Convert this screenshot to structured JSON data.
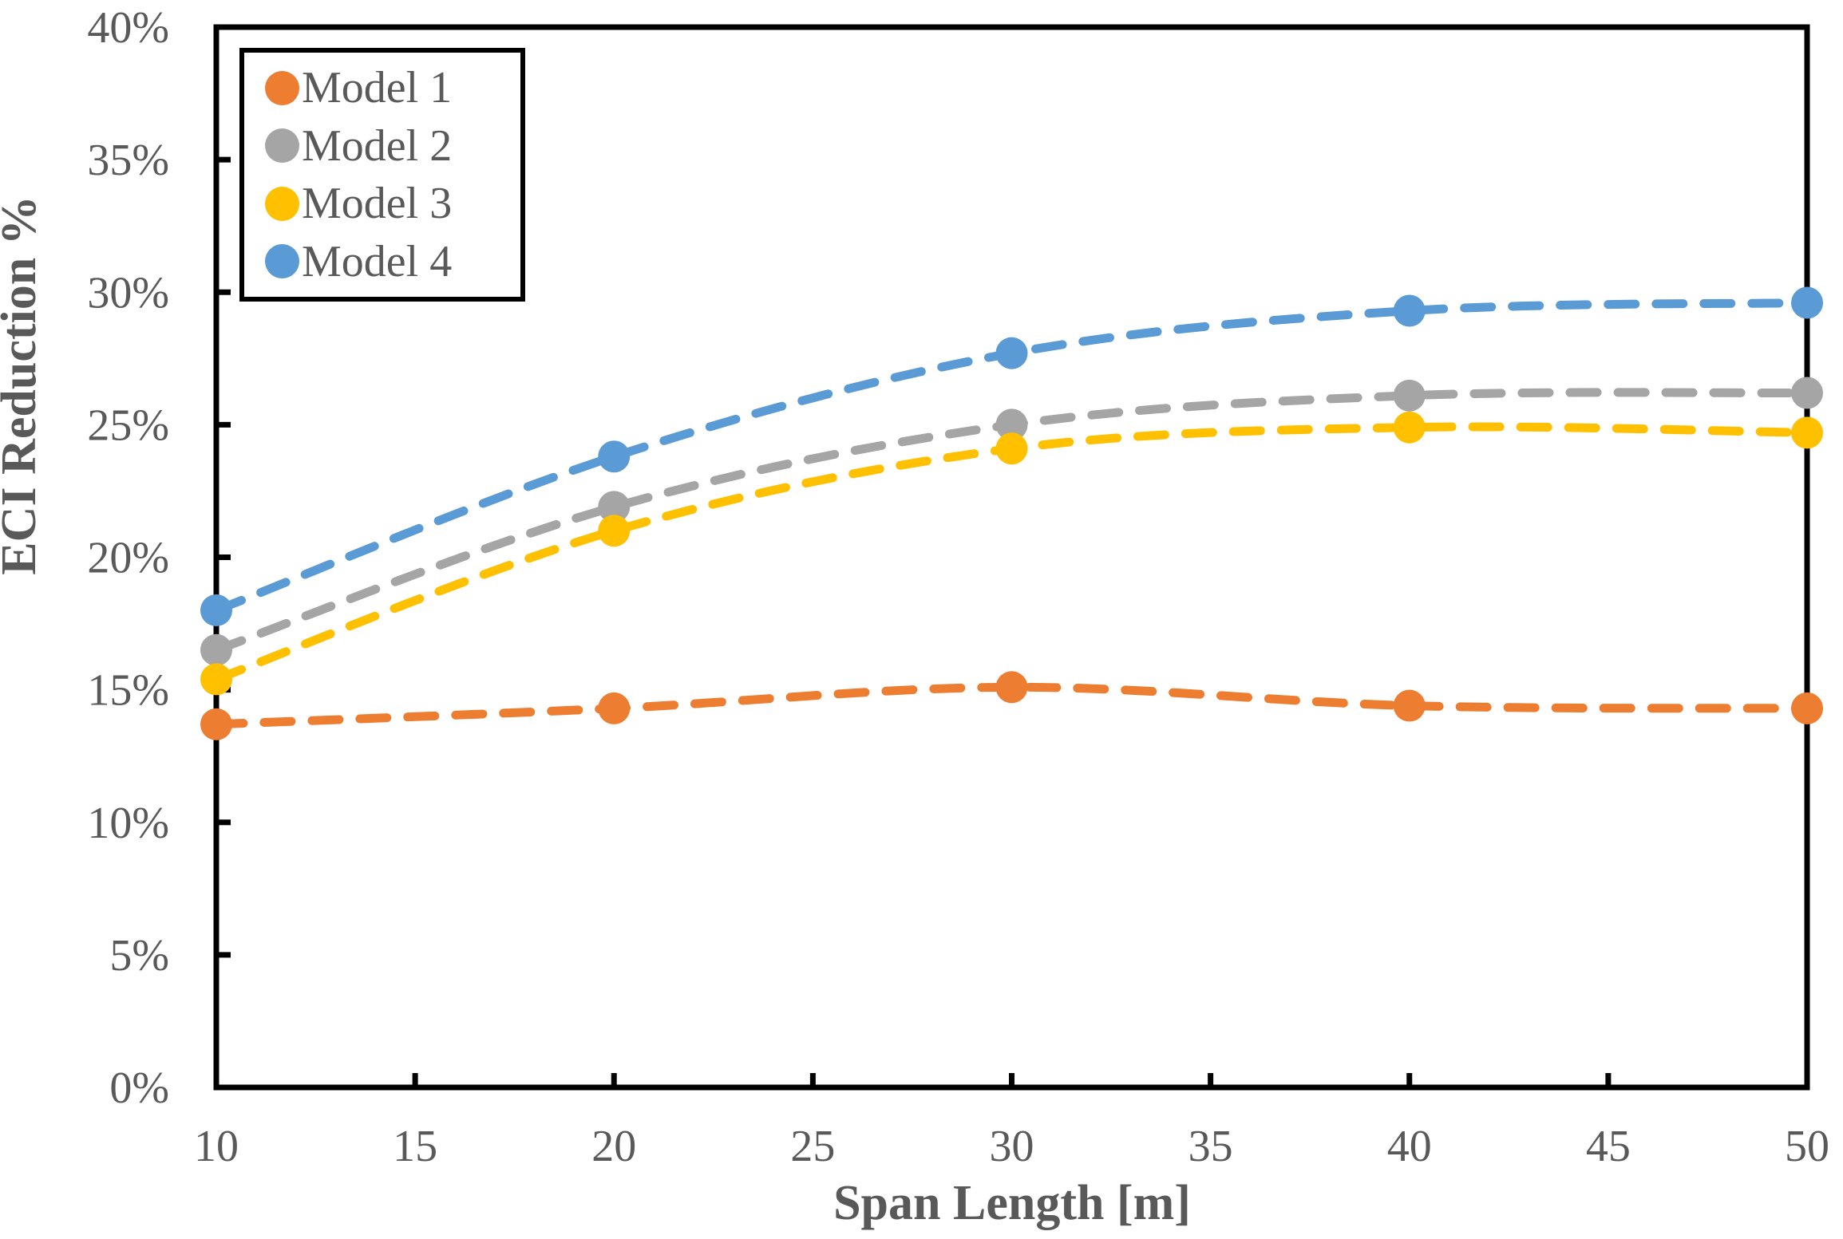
{
  "chart_data": {
    "type": "scatter",
    "marker": "circle",
    "line_style": "dashed-smooth",
    "grid": false,
    "x": [
      10,
      20,
      30,
      40,
      50
    ],
    "series": [
      {
        "name": "Model 1",
        "color": "#ED7D31",
        "values": [
          13.7,
          14.3,
          15.1,
          14.4,
          14.3
        ]
      },
      {
        "name": "Model 2",
        "color": "#A5A5A5",
        "values": [
          16.5,
          21.9,
          25.0,
          26.1,
          26.2
        ]
      },
      {
        "name": "Model 3",
        "color": "#FFC000",
        "values": [
          15.4,
          21.0,
          24.1,
          24.9,
          24.7
        ]
      },
      {
        "name": "Model 4",
        "color": "#5B9BD5",
        "values": [
          18.0,
          23.8,
          27.7,
          29.3,
          29.6
        ]
      }
    ],
    "xlabel": "Span Length [m]",
    "ylabel": "ECI Reduction %",
    "xlim": [
      10,
      50
    ],
    "ylim": [
      0,
      40
    ],
    "x_ticks": [
      10,
      15,
      20,
      25,
      30,
      35,
      40,
      45,
      50
    ],
    "x_tick_labels": [
      "10",
      "15",
      "20",
      "25",
      "30",
      "35",
      "40",
      "45",
      "50"
    ],
    "y_ticks": [
      0,
      5,
      10,
      15,
      20,
      25,
      30,
      35,
      40
    ],
    "y_tick_labels": [
      "0%",
      "5%",
      "10%",
      "15%",
      "20%",
      "25%",
      "30%",
      "35%",
      "40%"
    ],
    "legend": {
      "position": "top-left",
      "entries": [
        "Model 1",
        "Model 2",
        "Model 3",
        "Model 4"
      ]
    },
    "axis_color": "#000000",
    "text_color": "#595959"
  }
}
